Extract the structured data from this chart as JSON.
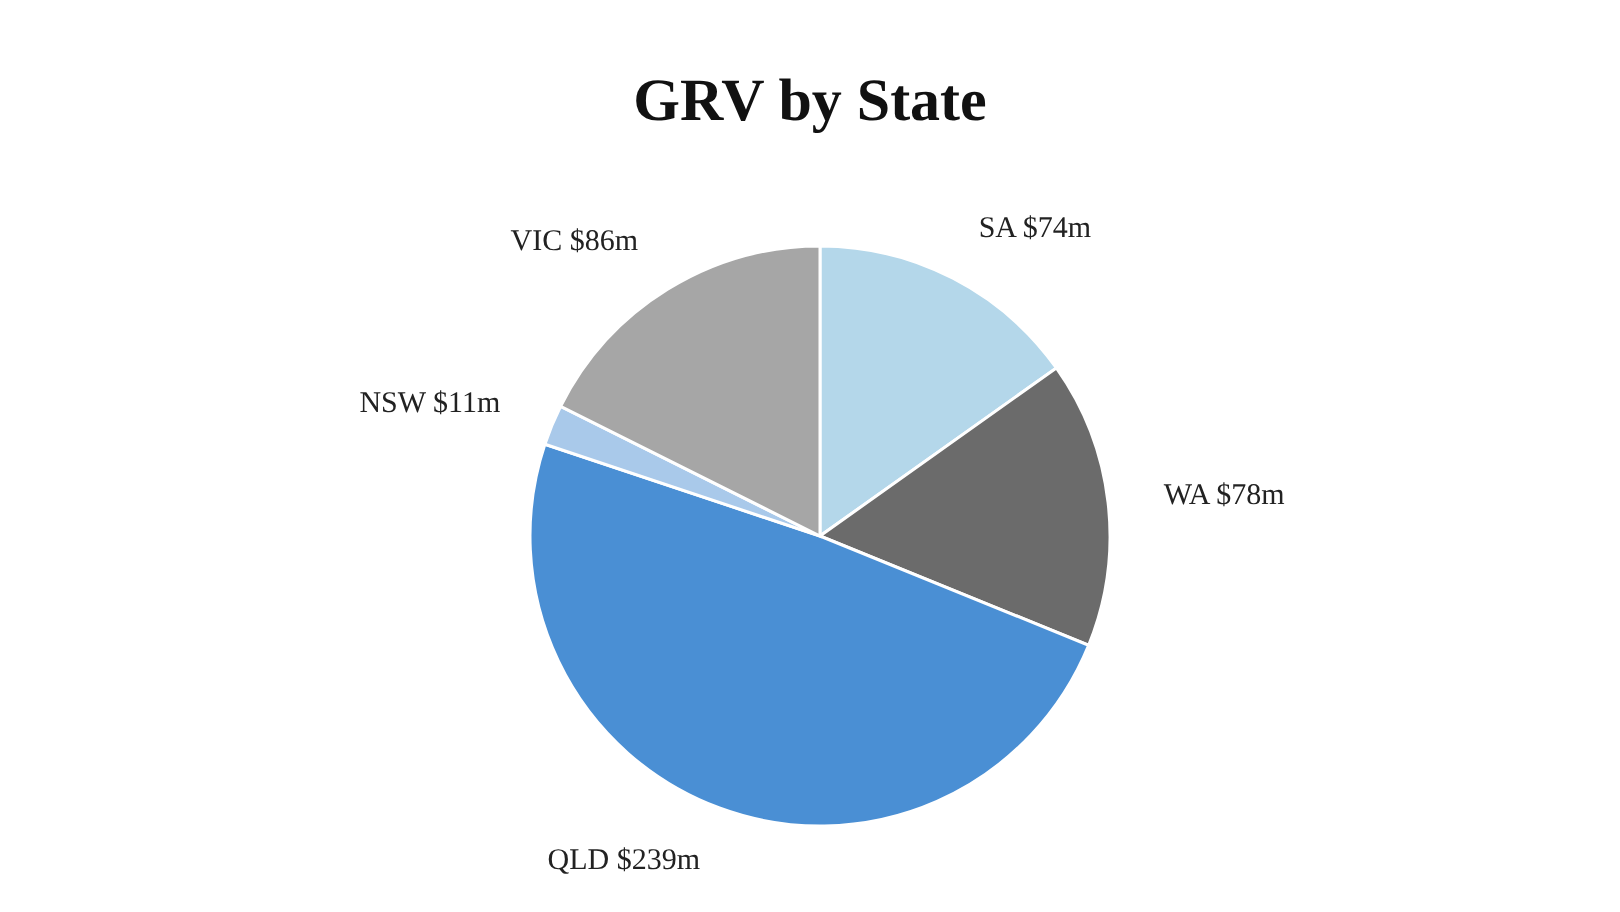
{
  "chart_data": {
    "type": "pie",
    "title": "GRV by State",
    "categories": [
      "SA",
      "WA",
      "QLD",
      "NSW",
      "VIC"
    ],
    "values": [
      74,
      78,
      239,
      11,
      86
    ],
    "value_labels": [
      "$74m",
      "$78m",
      "$239m",
      "$11m",
      "$86m"
    ],
    "colors": [
      "#b4d7ea",
      "#6b6b6b",
      "#4a8fd4",
      "#a9c9ea",
      "#a6a6a6"
    ],
    "legend": false
  }
}
